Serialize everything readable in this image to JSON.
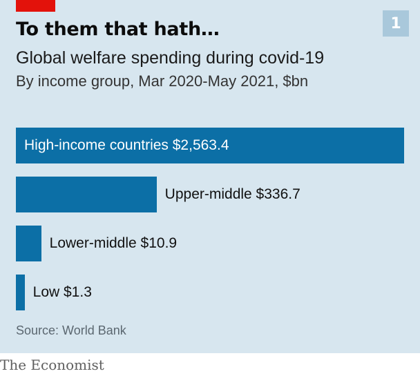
{
  "header": {
    "badge": "1",
    "title": "To them that hath…",
    "subtitle": "Global welfare spending during covid-19",
    "subsubtitle": "By income group, Mar 2020-May 2021, $bn"
  },
  "colors": {
    "background": "#d7e6ef",
    "bar": "#0c6fa6",
    "accent_red": "#e3120b"
  },
  "chart_data": {
    "type": "bar",
    "orientation": "horizontal",
    "title": "To them that hath…",
    "subtitle": "Global welfare spending during covid-19",
    "units": "$bn",
    "categories": [
      "High-income countries",
      "Upper-middle",
      "Lower-middle",
      "Low"
    ],
    "values": [
      2563.4,
      336.7,
      10.9,
      1.3
    ],
    "labels": [
      "High-income countries $2,563.4",
      "Upper-middle $336.7",
      "Lower-middle $10.9",
      "Low $1.3"
    ],
    "xlim": [
      0,
      2563.4
    ],
    "grid": false,
    "legend": "none"
  },
  "footer": {
    "source": "Source: World Bank",
    "brand": "The Economist"
  }
}
